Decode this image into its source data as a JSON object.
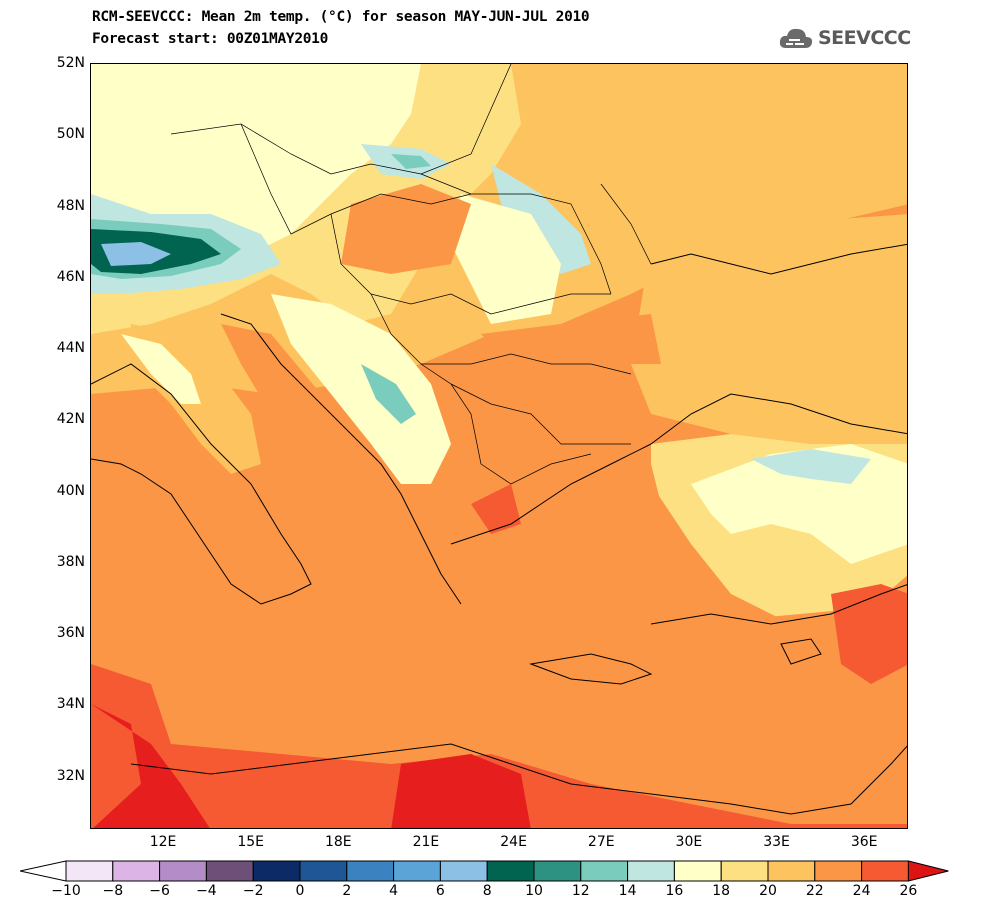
{
  "header": {
    "title_line1": "RCM-SEEVCCC: Mean 2m temp. (°C) for season MAY-JUN-JUL 2010",
    "title_line2": "Forecast start: 00Z01MAY2010",
    "logo_text": "SEEVCCC",
    "logo_icon": "cloud-logo-icon"
  },
  "map": {
    "region": "Southeastern Europe and Eastern Mediterranean",
    "lon_range": [
      9.5,
      37.5
    ],
    "lat_range": [
      30.5,
      52.0
    ],
    "lat_labels": [
      "52N",
      "50N",
      "48N",
      "46N",
      "44N",
      "42N",
      "40N",
      "38N",
      "36N",
      "34N",
      "32N"
    ],
    "lat_values": [
      52,
      50,
      48,
      46,
      44,
      42,
      40,
      38,
      36,
      34,
      32
    ],
    "lon_labels": [
      "12E",
      "15E",
      "18E",
      "21E",
      "24E",
      "27E",
      "30E",
      "33E",
      "36E"
    ],
    "lon_values": [
      12,
      15,
      18,
      21,
      24,
      27,
      30,
      33,
      36
    ]
  },
  "colorbar": {
    "labels": [
      "−10",
      "−8",
      "−6",
      "−4",
      "−2",
      "0",
      "2",
      "4",
      "6",
      "8",
      "10",
      "12",
      "14",
      "16",
      "18",
      "20",
      "22",
      "24",
      "26"
    ],
    "colors": [
      "#f3e6f7",
      "#dcb4e6",
      "#b48cc8",
      "#6e4f78",
      "#0c2a66",
      "#1f5696",
      "#3b82c0",
      "#5aa4d8",
      "#8cc0e4",
      "#006450",
      "#2e9282",
      "#7acdbc",
      "#bfe6e0",
      "#ffffc8",
      "#fde082",
      "#fdc35f",
      "#fa9646",
      "#f55a32",
      "#e61e1e"
    ],
    "low_extend_color": "#ffffff",
    "high_extend_color": "#dc1414"
  }
}
